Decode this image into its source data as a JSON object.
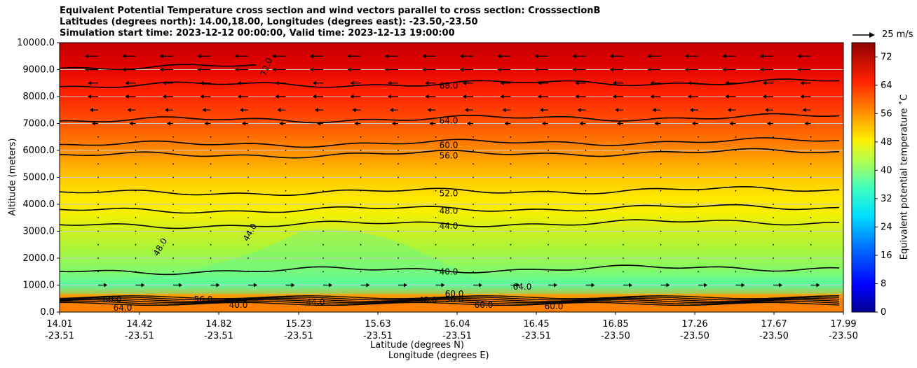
{
  "chart_data": {
    "type": "contour",
    "title_lines": [
      "Equivalent Potential Temperature cross section and wind vectors parallel to cross section: CrosssectionB",
      "Latitudes (degrees north): 14.00,18.00, Longitudes (degrees east): -23.50,-23.50",
      "Simulation start time: 2023-12-12 00:00:00, Valid time: 2023-12-13 19:00:00"
    ],
    "xlabel_lat": "Latitude (degrees N)",
    "xlabel_lon": "Longitude (degrees E)",
    "ylabel": "Altitude (meters)",
    "colorbar_label": "Equivalent potential temperature ˚C",
    "quiver_key_label": "25 m/s",
    "ylim": [
      0,
      10000
    ],
    "y_ticks": [
      "0.0",
      "1000.0",
      "2000.0",
      "3000.0",
      "4000.0",
      "5000.0",
      "6000.0",
      "7000.0",
      "8000.0",
      "9000.0",
      "10000.0"
    ],
    "x_tick_lat": [
      "14.01",
      "14.42",
      "14.82",
      "15.23",
      "15.63",
      "16.04",
      "16.45",
      "16.85",
      "17.26",
      "17.67",
      "17.99"
    ],
    "x_tick_lon": [
      "-23.51",
      "-23.51",
      "-23.51",
      "-23.51",
      "-23.51",
      "-23.51",
      "-23.51",
      "-23.50",
      "-23.50",
      "-23.50",
      "-23.50"
    ],
    "colorbar_ticks": [
      "0",
      "8",
      "16",
      "24",
      "32",
      "40",
      "48",
      "56",
      "64",
      "72"
    ],
    "colorbar_range": [
      0,
      76
    ],
    "contour_lines": [
      {
        "label": "72.0",
        "altitude_m": 9100,
        "partial": true
      },
      {
        "label": "68.0",
        "altitude_m": 8400
      },
      {
        "label": "64.0",
        "altitude_m": 7100
      },
      {
        "label": "60.0",
        "altitude_m": 6200
      },
      {
        "label": "56.0",
        "altitude_m": 5800
      },
      {
        "label": "52.0",
        "altitude_m": 4400
      },
      {
        "label": "48.0",
        "altitude_m": 3750
      },
      {
        "label": "44.0",
        "altitude_m": 3200
      },
      {
        "label": "40.0",
        "altitude_m": 1500
      }
    ],
    "surface_layer_labels": [
      "60.0",
      "64.0",
      "56.0",
      "40.0",
      "44.0",
      "48.0",
      "60.0",
      "56.0",
      "60.0",
      "64.0",
      "60.0"
    ],
    "extra_labels": [
      "48.0",
      "44.0"
    ],
    "wind_summary": "upper levels (above ~7500 m) flow toward lower latitude; near-surface (~1000 m) flow toward higher latitude",
    "grid": "horizontal only",
    "colormap": "jet"
  }
}
